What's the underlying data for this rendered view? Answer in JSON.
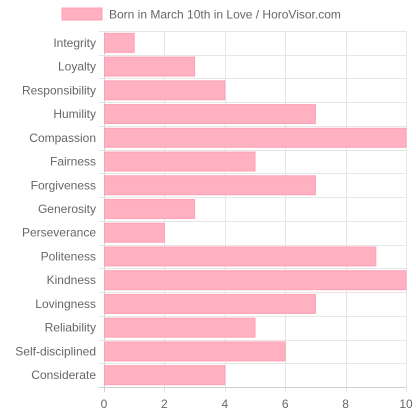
{
  "chart_data": {
    "type": "bar",
    "orientation": "horizontal",
    "series": [
      {
        "name": "Born in March 10th in Love / HoroVisor.com",
        "color": "#ffb0c1",
        "border_color": "#ffa1b5",
        "values": [
          1,
          3,
          4,
          7,
          10,
          5,
          7,
          3,
          2,
          9,
          10,
          7,
          5,
          6,
          4
        ]
      }
    ],
    "categories": [
      "Integrity",
      "Loyalty",
      "Responsibility",
      "Humility",
      "Compassion",
      "Fairness",
      "Forgiveness",
      "Generosity",
      "Perseverance",
      "Politeness",
      "Kindness",
      "Lovingness",
      "Reliability",
      "Self-disciplined",
      "Considerate"
    ],
    "xlim": [
      0,
      10
    ],
    "xticks": [
      "0",
      "2",
      "4",
      "6",
      "8",
      "10"
    ],
    "grid": true,
    "legend_position": "top"
  }
}
